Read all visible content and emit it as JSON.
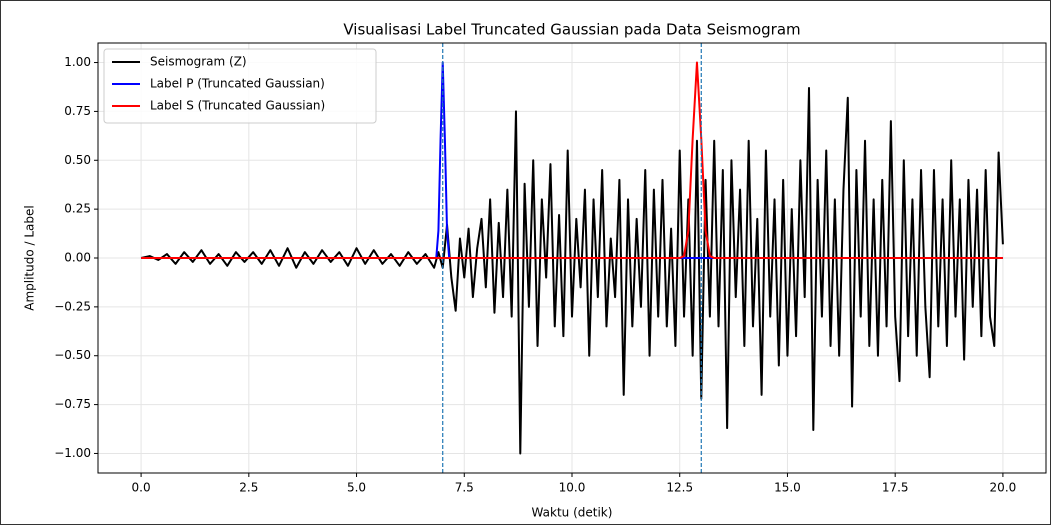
{
  "chart_data": {
    "type": "line",
    "title": "Visualisasi Label Truncated Gaussian pada Data Seismogram",
    "xlabel": "Waktu (detik)",
    "ylabel": "Amplitudo / Label",
    "xlim": [
      -1,
      21
    ],
    "ylim": [
      -1.1,
      1.1
    ],
    "xticks": [
      {
        "value": 0,
        "label": "0.0"
      },
      2.5,
      {
        "value": 5,
        "label": "5.0"
      },
      7.5,
      {
        "value": 10,
        "label": "10.0"
      },
      12.5,
      {
        "value": 15,
        "label": "15.0"
      },
      17.5,
      {
        "value": 20,
        "label": "20.0"
      }
    ],
    "yticks": [
      {
        "value": -1,
        "label": "−1.00"
      },
      {
        "value": -0.75,
        "label": "−0.75"
      },
      {
        "value": -0.5,
        "label": "−0.50"
      },
      {
        "value": -0.25,
        "label": "−0.25"
      },
      {
        "value": 0,
        "label": "0.00"
      },
      {
        "value": 0.25,
        "label": "0.25"
      },
      {
        "value": 0.5,
        "label": "0.50"
      },
      {
        "value": 0.75,
        "label": "0.75"
      },
      {
        "value": 1,
        "label": "1.00"
      }
    ],
    "grid": true,
    "legend": "upper left",
    "vlines": {
      "values": [
        7.0,
        13.0
      ],
      "color": "#1f77b4"
    },
    "series": [
      {
        "name": "Seismogram (Z)",
        "color": "#000000",
        "x": [
          0,
          0.2,
          0.4,
          0.6,
          0.8,
          1.0,
          1.2,
          1.4,
          1.6,
          1.8,
          2.0,
          2.2,
          2.4,
          2.6,
          2.8,
          3.0,
          3.2,
          3.4,
          3.6,
          3.8,
          4.0,
          4.2,
          4.4,
          4.6,
          4.8,
          5.0,
          5.2,
          5.4,
          5.6,
          5.8,
          6.0,
          6.2,
          6.4,
          6.6,
          6.8,
          6.9,
          7.0,
          7.1,
          7.2,
          7.3,
          7.4,
          7.5,
          7.6,
          7.7,
          7.8,
          7.9,
          8.0,
          8.1,
          8.2,
          8.3,
          8.4,
          8.5,
          8.6,
          8.7,
          8.8,
          8.9,
          9.0,
          9.1,
          9.2,
          9.3,
          9.4,
          9.5,
          9.6,
          9.7,
          9.8,
          9.9,
          10.0,
          10.1,
          10.2,
          10.3,
          10.4,
          10.5,
          10.6,
          10.7,
          10.8,
          10.9,
          11.0,
          11.1,
          11.2,
          11.3,
          11.4,
          11.5,
          11.6,
          11.7,
          11.8,
          11.9,
          12.0,
          12.1,
          12.2,
          12.3,
          12.4,
          12.5,
          12.6,
          12.7,
          12.8,
          12.9,
          13.0,
          13.1,
          13.2,
          13.3,
          13.4,
          13.5,
          13.6,
          13.7,
          13.8,
          13.9,
          14.0,
          14.1,
          14.2,
          14.3,
          14.4,
          14.5,
          14.6,
          14.7,
          14.8,
          14.9,
          15.0,
          15.1,
          15.2,
          15.3,
          15.4,
          15.5,
          15.6,
          15.7,
          15.8,
          15.9,
          16.0,
          16.1,
          16.2,
          16.3,
          16.4,
          16.5,
          16.6,
          16.7,
          16.8,
          16.9,
          17.0,
          17.1,
          17.2,
          17.3,
          17.4,
          17.5,
          17.6,
          17.7,
          17.8,
          17.9,
          18.0,
          18.1,
          18.2,
          18.3,
          18.4,
          18.5,
          18.6,
          18.7,
          18.8,
          18.9,
          19.0,
          19.1,
          19.2,
          19.3,
          19.4,
          19.5,
          19.6,
          19.7,
          19.8,
          19.9,
          20.0
        ],
        "values": [
          0,
          0.01,
          -0.01,
          0.02,
          -0.03,
          0.03,
          -0.02,
          0.04,
          -0.03,
          0.02,
          -0.04,
          0.03,
          -0.02,
          0.03,
          -0.03,
          0.04,
          -0.04,
          0.05,
          -0.05,
          0.03,
          -0.03,
          0.04,
          -0.02,
          0.03,
          -0.04,
          0.05,
          -0.03,
          0.04,
          -0.03,
          0.02,
          -0.04,
          0.03,
          -0.03,
          0.02,
          -0.05,
          0.03,
          -0.05,
          0.17,
          -0.1,
          -0.27,
          0.1,
          -0.1,
          0.15,
          -0.2,
          0.05,
          0.2,
          -0.15,
          0.3,
          -0.28,
          0.18,
          -0.2,
          0.35,
          -0.3,
          0.75,
          -1.0,
          0.38,
          -0.25,
          0.5,
          -0.45,
          0.3,
          -0.1,
          0.48,
          -0.35,
          0.22,
          -0.4,
          0.55,
          -0.3,
          0.2,
          -0.15,
          0.35,
          -0.5,
          0.3,
          -0.2,
          0.45,
          -0.35,
          0.1,
          -0.2,
          0.4,
          -0.7,
          0.3,
          -0.35,
          0.2,
          -0.25,
          0.45,
          -0.5,
          0.35,
          -0.3,
          0.4,
          -0.35,
          0.15,
          -0.45,
          0.55,
          -0.3,
          0.3,
          -0.5,
          0.6,
          -0.72,
          0.4,
          -0.3,
          0.6,
          -0.35,
          0.45,
          -0.87,
          0.5,
          -0.2,
          0.35,
          -0.45,
          0.6,
          -0.35,
          0.2,
          -0.7,
          0.55,
          -0.3,
          0.3,
          -0.55,
          0.4,
          -0.5,
          0.25,
          -0.4,
          0.5,
          -0.2,
          0.87,
          -0.88,
          0.4,
          -0.3,
          0.55,
          -0.45,
          0.3,
          -0.5,
          0.35,
          0.82,
          -0.76,
          0.45,
          -0.3,
          0.6,
          -0.45,
          0.3,
          -0.5,
          0.4,
          -0.35,
          0.7,
          -0.3,
          -0.63,
          0.5,
          -0.4,
          0.3,
          -0.5,
          0.45,
          -0.25,
          -0.61,
          0.45,
          -0.35,
          0.3,
          -0.45,
          0.5,
          -0.3,
          0.3,
          -0.52,
          0.4,
          -0.25,
          0.35,
          -0.4,
          0.45,
          -0.3,
          -0.45,
          0.54,
          0.07
        ]
      },
      {
        "name": "Label P (Truncated Gaussian)",
        "color": "#0000ff",
        "x": [
          0,
          6.85,
          6.9,
          6.95,
          7.0,
          7.05,
          7.1,
          7.15,
          20
        ],
        "values": [
          0,
          0,
          0.14,
          0.61,
          1,
          0.61,
          0.14,
          0,
          0
        ]
      },
      {
        "name": "Label S (Truncated Gaussian)",
        "color": "#ff0000",
        "x": [
          0,
          12.5,
          12.6,
          12.7,
          12.8,
          12.9,
          13.0,
          13.1,
          13.2,
          13.3,
          20
        ],
        "values": [
          0,
          0,
          0.01,
          0.14,
          0.61,
          1,
          0.61,
          0.14,
          0.01,
          0,
          0
        ]
      }
    ]
  }
}
